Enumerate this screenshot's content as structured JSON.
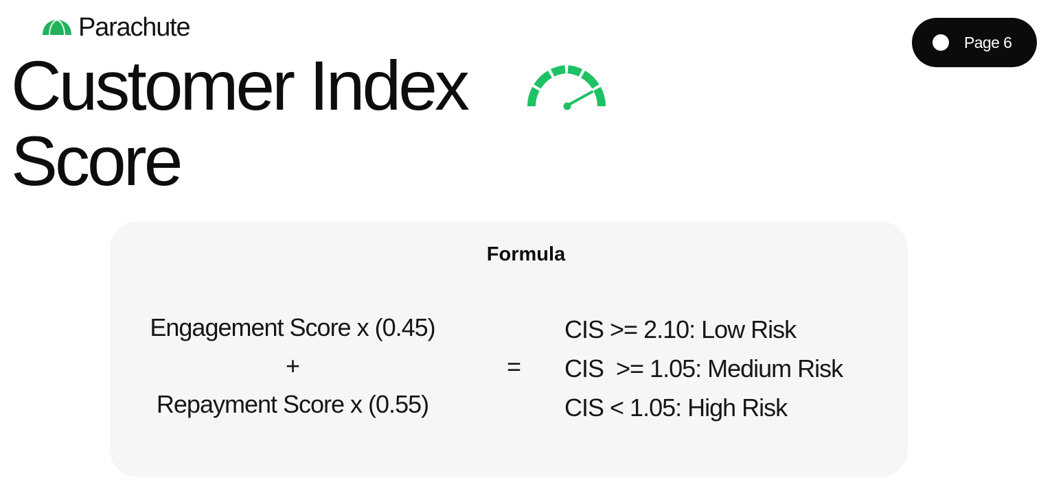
{
  "brand": {
    "name": "Parachute",
    "logo_icon": "parachute-logo-icon",
    "accent_color": "#1faa55"
  },
  "page_indicator": {
    "label": "Page 6"
  },
  "title": {
    "line1": "Customer Index",
    "line2": "Score",
    "icon": "speedometer-gauge-icon",
    "icon_color": "#1ec265"
  },
  "formula": {
    "heading": "Formula",
    "left": {
      "line1": "Engagement Score x (0.45)",
      "operator": "+",
      "line2": "Repayment Score x (0.55)"
    },
    "equals": "=",
    "thresholds": [
      "CIS >= 2.10: Low Risk",
      "CIS  >= 1.05: Medium Risk",
      "CIS < 1.05: High Risk"
    ]
  }
}
